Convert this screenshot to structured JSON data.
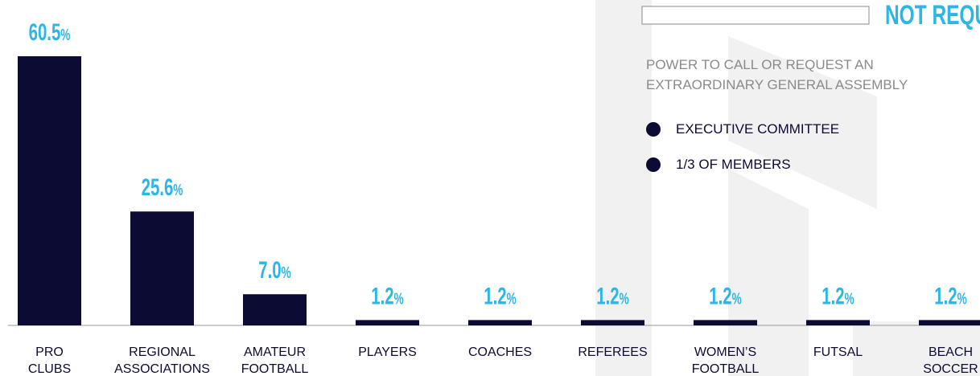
{
  "chart_data": {
    "type": "bar",
    "categories": [
      "PRO CLUBS",
      "REGIONAL ASSOCIATIONS",
      "AMATEUR FOOTBALL",
      "PLAYERS",
      "COACHES",
      "REFEREES",
      "WOMEN’S FOOTBALL",
      "FUTSAL",
      "BEACH SOCCER"
    ],
    "values": [
      60.5,
      25.6,
      7.0,
      1.2,
      1.2,
      1.2,
      1.2,
      1.2,
      1.2
    ],
    "value_labels": [
      "60.5%",
      "25.6%",
      "7.0%",
      "1.2%",
      "1.2%",
      "1.2%",
      "1.2%",
      "1.2%",
      "1.2%"
    ],
    "color": "#0b0b33",
    "label_color": "#2bb6e6"
  },
  "panel": {
    "status": "NOT REQUIRED",
    "heading": "POWER TO CALL OR REQUEST AN EXTRAORDINARY GENERAL ASSEMBLY",
    "items": [
      "EXECUTIVE COMMITTEE",
      "1/3 OF MEMBERS"
    ]
  }
}
